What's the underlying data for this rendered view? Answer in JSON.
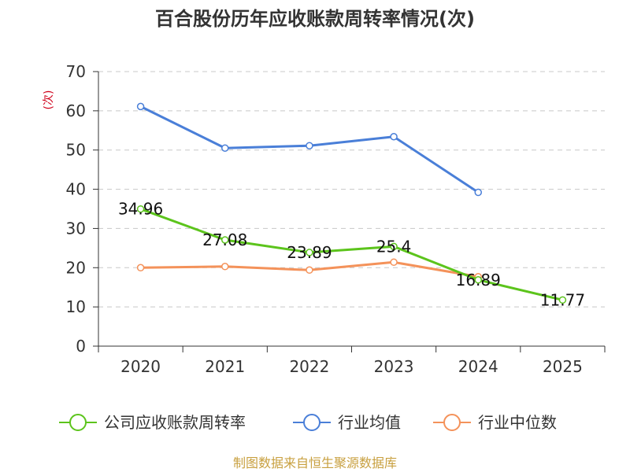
{
  "chart_data": {
    "type": "line",
    "title": "百合股份历年应收账款周转率情况(次)",
    "ylabel": "(次)",
    "xlabel": "",
    "categories": [
      "2020",
      "2021",
      "2022",
      "2023",
      "2024",
      "2025"
    ],
    "ylim": [
      0,
      70
    ],
    "yticks": [
      0,
      10,
      20,
      30,
      40,
      50,
      60,
      70
    ],
    "grid": true,
    "legend_position": "bottom",
    "series": [
      {
        "name": "公司应收账款周转率",
        "color": "#5cc41c",
        "values": [
          34.96,
          27.08,
          23.89,
          25.4,
          16.89,
          11.77
        ],
        "labels": [
          "34.96",
          "27.08",
          "23.89",
          "25.4",
          "16.89",
          "11.77"
        ]
      },
      {
        "name": "行业均值",
        "color": "#4a7fd8",
        "values": [
          61.1,
          50.5,
          51.1,
          53.4,
          39.2,
          null
        ]
      },
      {
        "name": "行业中位数",
        "color": "#f4925a",
        "values": [
          20.0,
          20.3,
          19.4,
          21.4,
          17.7,
          null
        ]
      }
    ],
    "source": "制图数据来自恒生聚源数据库"
  }
}
